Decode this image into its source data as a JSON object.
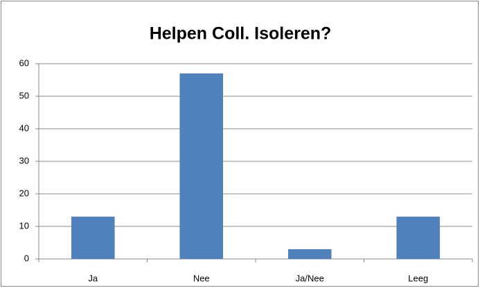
{
  "chart_data": {
    "type": "bar",
    "title": "Helpen Coll. Isoleren?",
    "categories": [
      "Ja",
      "Nee",
      "Ja/Nee",
      "Leeg"
    ],
    "values": [
      13,
      57,
      3,
      13
    ],
    "color": "#4f81bd",
    "ylim": [
      0,
      60
    ],
    "yticks": [
      0,
      10,
      20,
      30,
      40,
      50,
      60
    ],
    "grid": true
  }
}
